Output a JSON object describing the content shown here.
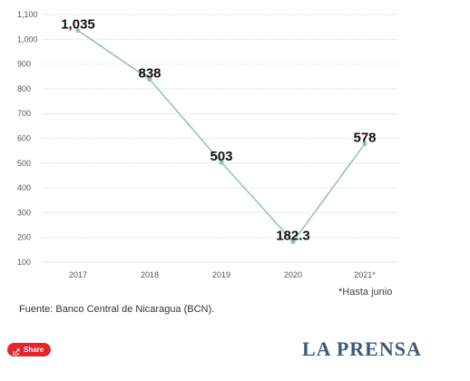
{
  "chart_data": {
    "type": "line",
    "categories": [
      "2017",
      "2018",
      "2019",
      "2020",
      "2021*"
    ],
    "values": [
      1035,
      838,
      503,
      182.3,
      578
    ],
    "data_labels": [
      "1,035",
      "838",
      "503",
      "182.3",
      "578"
    ],
    "y_ticks": [
      100,
      200,
      300,
      400,
      500,
      600,
      700,
      800,
      900,
      1000,
      1100
    ],
    "y_tick_labels": [
      "100",
      "200",
      "300",
      "400",
      "500",
      "600",
      "700",
      "800",
      "900",
      "1,000",
      "1,100"
    ],
    "ylim": [
      100,
      1100
    ],
    "grid": "horizontal",
    "line_color": "#8cc6a4",
    "point_color": "#8cc6a4"
  },
  "notes": {
    "footnote": "*Hasta junio",
    "source": "Fuente: Banco Central de Nicaragua (BCN)."
  },
  "footer": {
    "share_label": "Share",
    "brand": "LA PRENSA",
    "share_color": "#e5242b",
    "brand_color": "#3f5a78"
  }
}
